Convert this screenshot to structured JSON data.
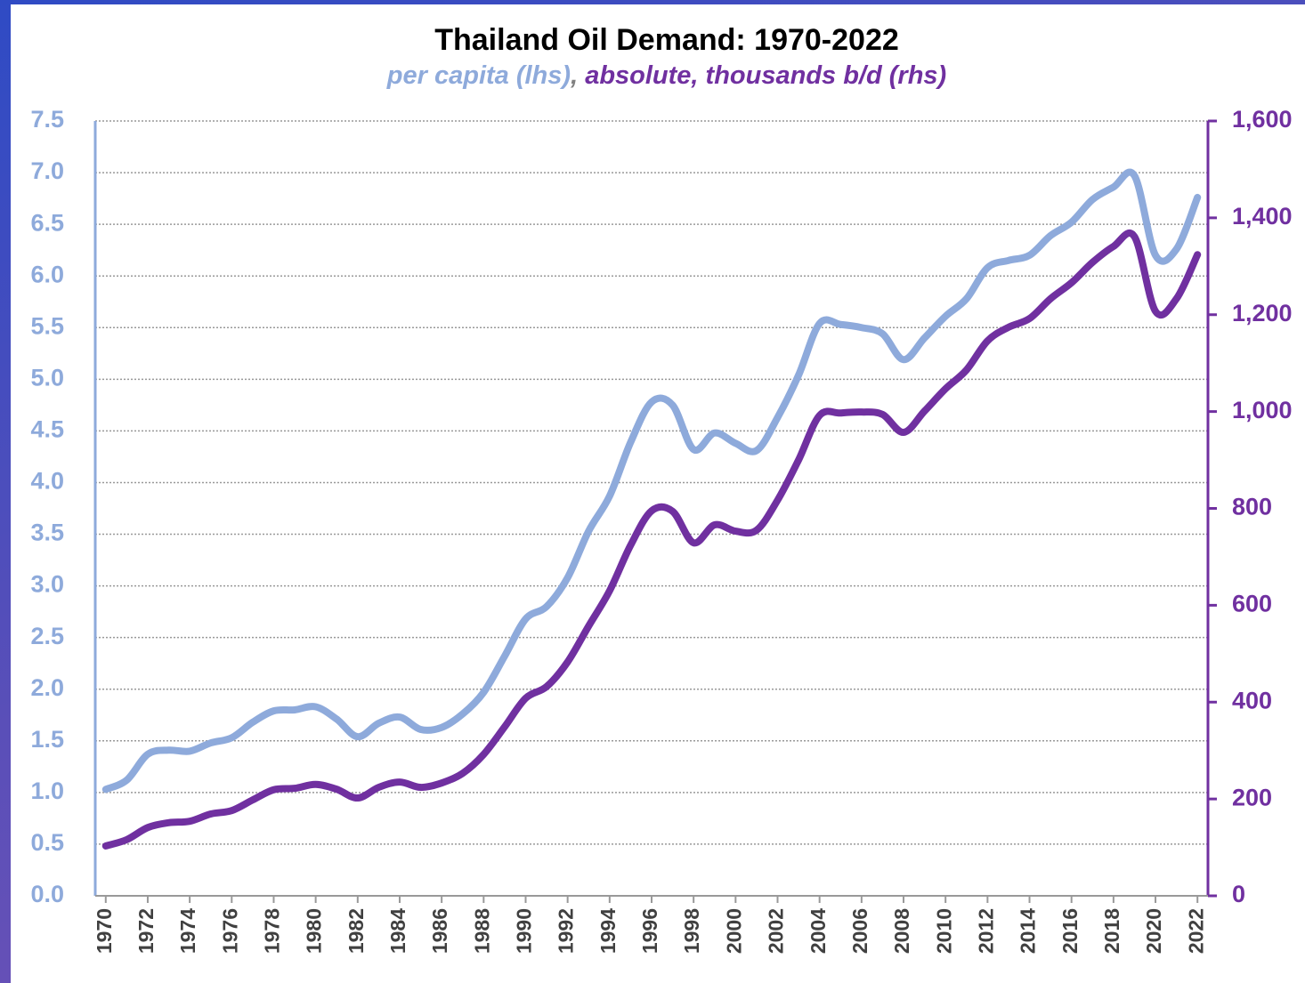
{
  "chart_data": {
    "type": "line",
    "title": "Thailand Oil Demand: 1970-2022",
    "subtitle_separator": ",",
    "x": [
      1970,
      1971,
      1972,
      1973,
      1974,
      1975,
      1976,
      1977,
      1978,
      1979,
      1980,
      1981,
      1982,
      1983,
      1984,
      1985,
      1986,
      1987,
      1988,
      1989,
      1990,
      1991,
      1992,
      1993,
      1994,
      1995,
      1996,
      1997,
      1998,
      1999,
      2000,
      2001,
      2002,
      2003,
      2004,
      2005,
      2006,
      2007,
      2008,
      2009,
      2010,
      2011,
      2012,
      2013,
      2014,
      2015,
      2016,
      2017,
      2018,
      2019,
      2020,
      2021,
      2022
    ],
    "xlim": [
      1969.5,
      2022.5
    ],
    "xticks": [
      1970,
      1972,
      1974,
      1976,
      1978,
      1980,
      1982,
      1984,
      1986,
      1988,
      1990,
      1992,
      1994,
      1996,
      1998,
      2000,
      2002,
      2004,
      2006,
      2008,
      2010,
      2012,
      2014,
      2016,
      2018,
      2020,
      2022
    ],
    "ylim": [
      0,
      7.5
    ],
    "yticks": [
      {
        "value": 0,
        "label": "0.0"
      },
      0.5,
      {
        "value": 1,
        "label": "1.0"
      },
      1.5,
      {
        "value": 2,
        "label": "2.0"
      },
      2.5,
      {
        "value": 3,
        "label": "3.0"
      },
      3.5,
      {
        "value": 4,
        "label": "4.0"
      },
      4.5,
      {
        "value": 5,
        "label": "5.0"
      },
      5.5,
      {
        "value": 6,
        "label": "6.0"
      },
      6.5,
      {
        "value": 7,
        "label": "7.0"
      },
      7.5
    ],
    "y2lim": [
      0,
      1600
    ],
    "y2ticks": [
      0,
      200,
      400,
      600,
      800,
      {
        "value": 1000,
        "label": "1,000"
      },
      {
        "value": 1200,
        "label": "1,200"
      },
      {
        "value": 1400,
        "label": "1,400"
      },
      {
        "value": 1600,
        "label": "1,600"
      }
    ],
    "grid": true,
    "series": [
      {
        "name": "per capita (lhs)",
        "color": "#8eaadb",
        "axis": "y",
        "values": [
          1.03,
          1.12,
          1.37,
          1.41,
          1.4,
          1.48,
          1.53,
          1.68,
          1.79,
          1.8,
          1.83,
          1.71,
          1.54,
          1.67,
          1.73,
          1.61,
          1.63,
          1.76,
          1.97,
          2.32,
          2.68,
          2.8,
          3.08,
          3.53,
          3.87,
          4.39,
          4.78,
          4.75,
          4.32,
          4.48,
          4.38,
          4.31,
          4.63,
          5.04,
          5.54,
          5.53,
          5.5,
          5.44,
          5.19,
          5.4,
          5.61,
          5.78,
          6.08,
          6.15,
          6.2,
          6.39,
          6.52,
          6.74,
          6.86,
          6.97,
          6.2,
          6.26,
          6.76
        ]
      },
      {
        "name": "absolute, thousands b/d (rhs)",
        "color": "#7030a0",
        "axis": "y2",
        "values": [
          103,
          116,
          141,
          151,
          154,
          169,
          176,
          198,
          219,
          222,
          230,
          220,
          202,
          224,
          235,
          224,
          233,
          253,
          292,
          349,
          408,
          432,
          483,
          557,
          630,
          724,
          795,
          794,
          729,
          766,
          753,
          755,
          817,
          900,
          992,
          997,
          999,
          994,
          957,
          1001,
          1047,
          1086,
          1146,
          1174,
          1192,
          1233,
          1266,
          1308,
          1341,
          1361,
          1207,
          1233,
          1324
        ]
      }
    ]
  }
}
